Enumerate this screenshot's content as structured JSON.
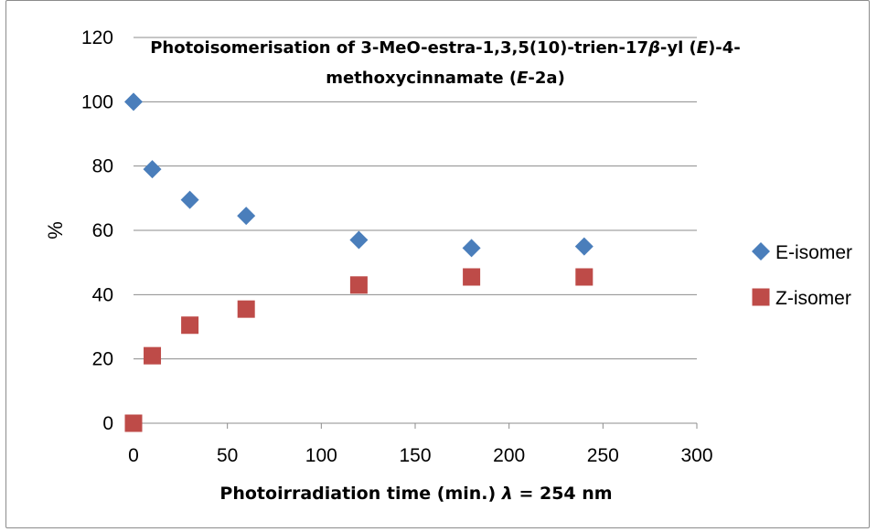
{
  "chart_data": {
    "type": "scatter",
    "title_line1_parts": {
      "a": "Photoisomerisation of 3-MeO-estra-1,3,5(10)-trien-17",
      "beta": "β",
      "b": "-yl (",
      "e1": "E",
      "c": ")-4-"
    },
    "title_line2_parts": {
      "a": "methoxycinnamate (",
      "e2": "E",
      "b": "-2a)"
    },
    "xlabel_parts": {
      "a": "Photoirradiation time (min.) ",
      "lambda": "λ",
      "b": " = 254 nm"
    },
    "ylabel": "%",
    "xlim": [
      0,
      300
    ],
    "ylim": [
      0,
      120
    ],
    "x_ticks": [
      0,
      50,
      100,
      150,
      200,
      250,
      300
    ],
    "y_ticks": [
      0,
      20,
      40,
      60,
      80,
      100,
      120
    ],
    "grid": "horizontal",
    "legend_position": "right",
    "series": [
      {
        "name": "E-isomer",
        "marker": "diamond",
        "color": "#4a7ebb",
        "points": [
          [
            0,
            100
          ],
          [
            10,
            79
          ],
          [
            30,
            69.5
          ],
          [
            60,
            64.5
          ],
          [
            120,
            57
          ],
          [
            180,
            54.5
          ],
          [
            240,
            55
          ]
        ]
      },
      {
        "name": "Z-isomer",
        "marker": "square",
        "color": "#be4b48",
        "points": [
          [
            0,
            0
          ],
          [
            10,
            21
          ],
          [
            30,
            30.5
          ],
          [
            60,
            35.5
          ],
          [
            120,
            43
          ],
          [
            180,
            45.5
          ],
          [
            240,
            45.5
          ]
        ]
      }
    ]
  }
}
